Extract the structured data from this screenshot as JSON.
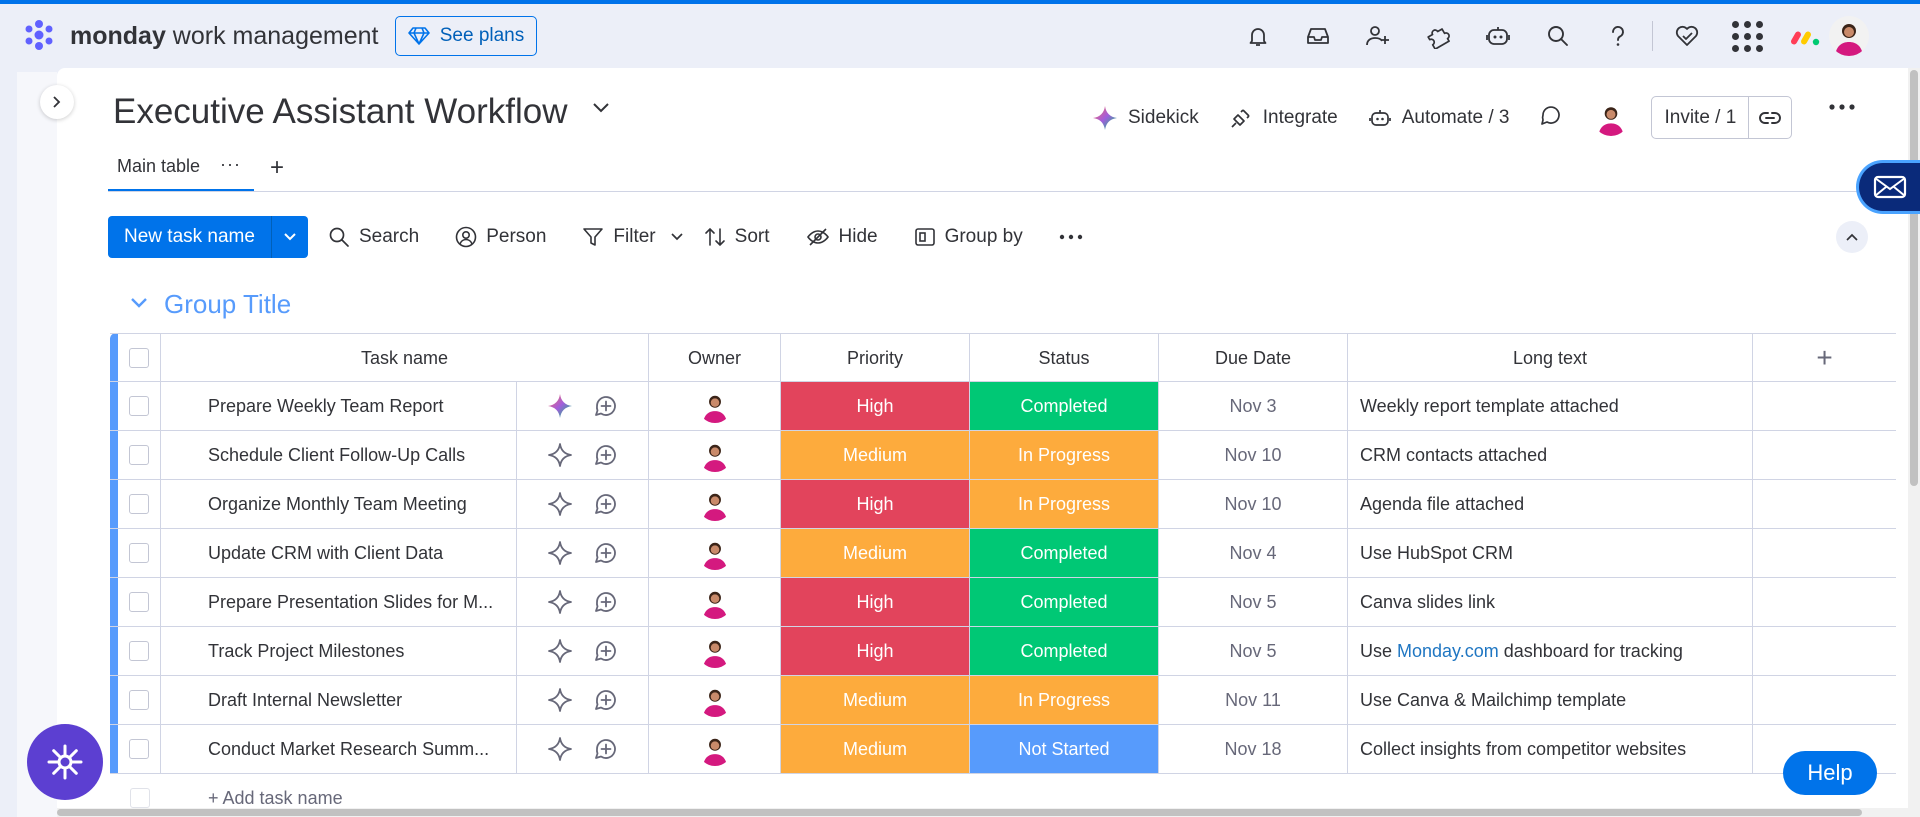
{
  "app": {
    "brand_bold": "monday",
    "brand_light": " work management",
    "see_plans": "See plans"
  },
  "topbar_icons": [
    "bell-icon",
    "inbox-icon",
    "invite-members-icon",
    "apps-icon",
    "ai-assistant-icon",
    "search-icon",
    "help-icon",
    "favorites-icon",
    "app-switcher-icon"
  ],
  "board": {
    "title": "Executive Assistant Workflow",
    "sidekick": "Sidekick",
    "integrate": "Integrate",
    "automate": "Automate / 3",
    "invite": "Invite / 1"
  },
  "tabs": {
    "main": "Main table",
    "dots": "···",
    "add": "+"
  },
  "toolbar": {
    "new_task": "New task name",
    "search": "Search",
    "person": "Person",
    "filter": "Filter",
    "sort": "Sort",
    "hide": "Hide",
    "group_by": "Group by"
  },
  "group": {
    "title": "Group Title",
    "color": "#579bfc"
  },
  "columns": {
    "task": "Task name",
    "owner": "Owner",
    "priority": "Priority",
    "status": "Status",
    "due": "Due Date",
    "long": "Long text",
    "add": "+"
  },
  "colors": {
    "high": "#e2445c",
    "medium": "#fdab3d",
    "completed": "#00c875",
    "in_progress": "#fdab3d",
    "not_started": "#579bfc"
  },
  "rows": [
    {
      "task": "Prepare Weekly Team Report",
      "priority": "High",
      "status": "Completed",
      "due": "Nov 3",
      "long_pre": "Weekly report template attached",
      "long_link": "",
      "long_post": ""
    },
    {
      "task": "Schedule Client Follow-Up Calls",
      "priority": "Medium",
      "status": "In Progress",
      "due": "Nov 10",
      "long_pre": "CRM contacts attached",
      "long_link": "",
      "long_post": ""
    },
    {
      "task": "Organize Monthly Team Meeting",
      "priority": "High",
      "status": "In Progress",
      "due": "Nov 10",
      "long_pre": "Agenda file attached",
      "long_link": "",
      "long_post": ""
    },
    {
      "task": "Update CRM with Client Data",
      "priority": "Medium",
      "status": "Completed",
      "due": "Nov 4",
      "long_pre": "Use HubSpot CRM",
      "long_link": "",
      "long_post": ""
    },
    {
      "task": "Prepare Presentation Slides for M...",
      "priority": "High",
      "status": "Completed",
      "due": "Nov 5",
      "long_pre": "Canva slides link",
      "long_link": "",
      "long_post": ""
    },
    {
      "task": "Track Project Milestones",
      "priority": "High",
      "status": "Completed",
      "due": "Nov 5",
      "long_pre": "Use ",
      "long_link": "Monday.com",
      "long_post": " dashboard for tracking"
    },
    {
      "task": "Draft Internal Newsletter",
      "priority": "Medium",
      "status": "In Progress",
      "due": "Nov 11",
      "long_pre": "Use Canva & Mailchimp template",
      "long_link": "",
      "long_post": ""
    },
    {
      "task": "Conduct Market Research Summ...",
      "priority": "Medium",
      "status": "Not Started",
      "due": "Nov 18",
      "long_pre": "Collect insights from competitor websites",
      "long_link": "",
      "long_post": ""
    }
  ],
  "add_task": "+ Add task name",
  "help": "Help"
}
